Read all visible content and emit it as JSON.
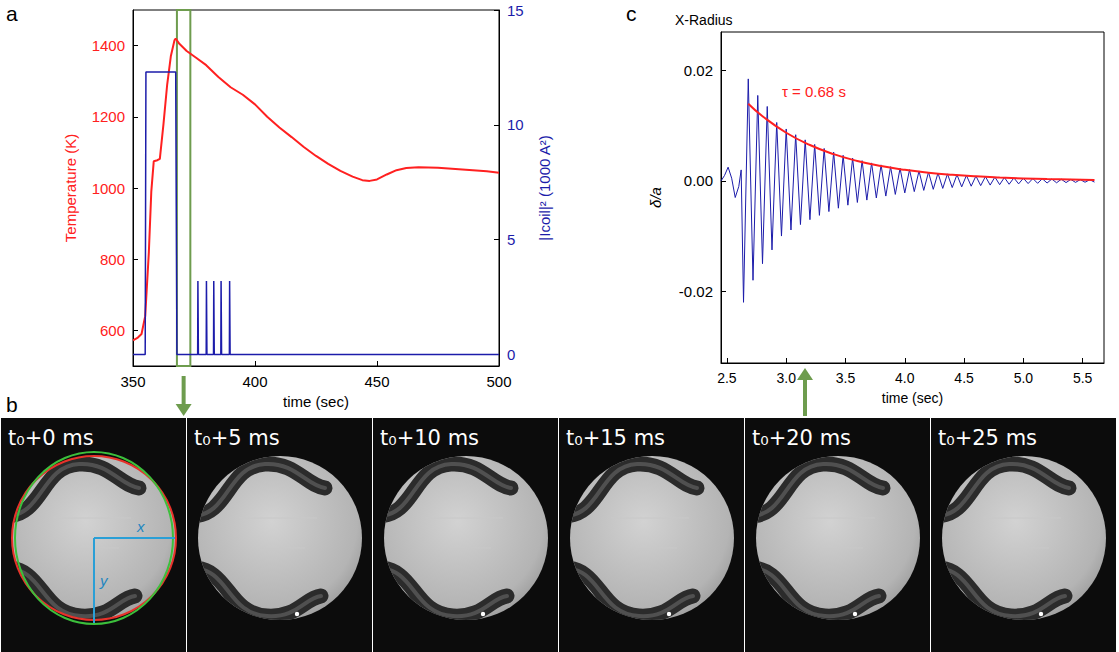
{
  "chart_data": [
    {
      "panel": "a",
      "type": "line",
      "xlabel": "time (sec)",
      "ylabel": "Temperature (K)",
      "y2label": "|Icoil|² (1000 A²)",
      "xlim": [
        350,
        500
      ],
      "xticks": [
        350,
        400,
        450,
        500
      ],
      "ylim": [
        500,
        1500
      ],
      "yticks": [
        600,
        800,
        1000,
        1200,
        1400
      ],
      "y2lim": [
        -0.5,
        15
      ],
      "y2ticks": [
        0,
        5,
        10,
        15
      ],
      "grid": false,
      "window": [
        368,
        373.5
      ],
      "series": [
        {
          "color": "#ff2020",
          "x": [
            350,
            352,
            353.5,
            355,
            356.5,
            357.5,
            358.5,
            360,
            361,
            362.5,
            364,
            365.5,
            367,
            367.5,
            369,
            372,
            376,
            380,
            385,
            390,
            395,
            400,
            405,
            410,
            415,
            420,
            425,
            430,
            435,
            440,
            444,
            447,
            450,
            454,
            458,
            462,
            467,
            475,
            485,
            495,
            500
          ],
          "values": [
            572,
            580,
            590,
            640,
            820,
            990,
            1075,
            1078,
            1082,
            1180,
            1290,
            1370,
            1415,
            1420,
            1405,
            1385,
            1365,
            1345,
            1312,
            1283,
            1262,
            1235,
            1200,
            1170,
            1143,
            1115,
            1090,
            1068,
            1048,
            1032,
            1022,
            1020,
            1024,
            1038,
            1050,
            1056,
            1058,
            1057,
            1052,
            1047,
            1043
          ]
        },
        {
          "color": "#1c1caa",
          "axis": "y2",
          "x": [
            350,
            355,
            355.3,
            367.5,
            368,
            376.5,
            376.6,
            376.8,
            380,
            380.1,
            380.3,
            383,
            383.1,
            383.3,
            386,
            386.1,
            386.3,
            389.5,
            389.6,
            389.8,
            500
          ],
          "values": [
            0,
            0,
            12.3,
            12.3,
            0,
            0,
            3.2,
            0,
            0,
            3.2,
            0,
            0,
            3.2,
            0,
            0,
            3.2,
            0,
            0,
            3.2,
            0,
            0
          ]
        }
      ]
    },
    {
      "panel": "c",
      "type": "line",
      "title": "X-Radius",
      "xlabel": "time (sec)",
      "ylabel": "δ/a",
      "annotation": "τ = 0.68 s",
      "xlim": [
        2.45,
        5.68
      ],
      "xticks": [
        2.5,
        {
          "value": 3,
          "label": "3.0"
        },
        3.5,
        {
          "value": 4,
          "label": "4.0"
        },
        4.5,
        {
          "value": 5,
          "label": "5.0"
        },
        5.5
      ],
      "ylim": [
        -0.033,
        0.027
      ],
      "yticks": [
        -0.02,
        {
          "value": 0,
          "label": "0.00"
        },
        0.02
      ],
      "grid": false,
      "series": [
        {
          "color": "#1c1caa",
          "x": [
            2.45,
            2.48,
            2.51,
            2.54,
            2.57,
            2.6,
            2.62,
            2.64,
            2.68,
            2.72,
            2.76,
            2.8,
            2.84,
            2.88,
            2.92,
            2.96,
            3.0,
            3.04,
            3.08,
            3.12,
            3.16,
            3.2,
            3.24,
            3.28,
            3.32,
            3.36,
            3.4,
            3.44,
            3.48,
            3.52,
            3.56,
            3.6,
            3.64,
            3.68,
            3.72,
            3.76,
            3.8,
            3.84,
            3.88,
            3.92,
            3.96,
            4.0,
            4.04,
            4.08,
            4.12,
            4.16,
            4.2,
            4.24,
            4.28,
            4.32,
            4.36,
            4.4,
            4.44,
            4.48,
            4.52,
            4.56,
            4.6,
            4.64,
            4.68,
            4.72,
            4.76,
            4.8,
            4.84,
            4.88,
            4.92,
            4.96,
            5.0,
            5.04,
            5.08,
            5.12,
            5.16,
            5.2,
            5.24,
            5.28,
            5.32,
            5.36,
            5.4,
            5.44,
            5.48,
            5.52,
            5.56,
            5.6
          ],
          "values": [
            0,
            0.001,
            0.0025,
            0.0005,
            -0.003,
            -0.001,
            0.002,
            -0.022,
            0.0185,
            -0.018,
            0.0155,
            -0.015,
            0.0135,
            -0.0125,
            0.0106,
            -0.00999,
            0.00942,
            -0.00889,
            0.00838,
            -0.0079,
            0.00745,
            -0.00702,
            0.00662,
            -0.00624,
            0.00589,
            -0.00555,
            0.00523,
            -0.00494,
            0.00465,
            -0.00439,
            0.00414,
            -0.0039,
            0.00368,
            -0.00347,
            0.00327,
            -0.00308,
            0.00291,
            -0.00274,
            0.00258,
            -0.00244,
            0.0023,
            -0.00217,
            0.00204,
            -0.00193,
            0.00182,
            -0.00171,
            0.00161,
            -0.00152,
            0.00144,
            -0.00135,
            0.00128,
            -0.0012,
            0.00113,
            -0.00107,
            0.00101,
            -0.00095,
            0.0009,
            -0.00085,
            0.0008,
            -0.00075,
            0.00071,
            -0.00067,
            0.00063,
            -0.0006,
            0.00056,
            -0.00053,
            0.0005,
            -0.00047,
            0.00044,
            -0.00042,
            0.0004,
            -0.00037,
            0.00035,
            -0.00033,
            0.00031,
            -0.0003,
            0.00028,
            -0.00026,
            0.00025,
            -0.00023,
            0.00022,
            -0.00021
          ]
        },
        {
          "color": "#ff2020",
          "x": [
            2.68,
            2.8,
            3.0,
            3.2,
            3.4,
            3.6,
            3.8,
            4.0,
            4.2,
            4.4,
            4.6,
            4.8,
            5.0,
            5.2,
            5.4,
            5.6
          ],
          "values": [
            0.014,
            0.01174,
            0.00874,
            0.00652,
            0.00486,
            0.00362,
            0.0027,
            0.00201,
            0.0015,
            0.00112,
            0.00083,
            0.00062,
            0.00046,
            0.00034,
            0.00026,
            0.00019
          ]
        }
      ]
    }
  ],
  "image_strip": {
    "panel": "b",
    "frames": [
      "t₀+0 ms",
      "t₀+5 ms",
      "t₀+10 ms",
      "t₀+15 ms",
      "t₀+20 ms",
      "t₀+25 ms"
    ],
    "overlay_labels": [
      "x",
      "y"
    ]
  }
}
